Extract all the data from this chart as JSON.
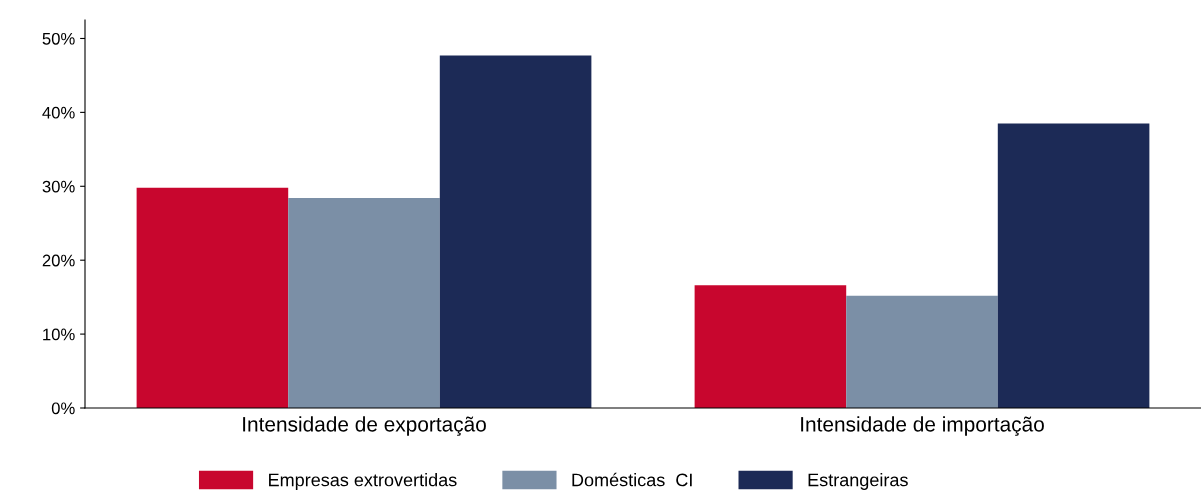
{
  "chart_data": {
    "type": "bar",
    "categories": [
      "Intensidade de exportação",
      "Intensidade de importação"
    ],
    "series": [
      {
        "name": "Empresas extrovertidas",
        "color": "#c8062e",
        "values": [
          29.8,
          16.6
        ]
      },
      {
        "name": "Domésticas  CI",
        "color": "#7b8fa6",
        "values": [
          28.4,
          15.2
        ]
      },
      {
        "name": "Estrangeiras",
        "color": "#1c2a56",
        "values": [
          47.7,
          38.5
        ]
      }
    ],
    "ylim": [
      0,
      52.5
    ],
    "yticks": [
      {
        "value": 0,
        "label": "0%"
      },
      {
        "value": 10,
        "label": "10%"
      },
      {
        "value": 20,
        "label": "20%"
      },
      {
        "value": 30,
        "label": "30%"
      },
      {
        "value": 40,
        "label": "40%"
      },
      {
        "value": 50,
        "label": "50%"
      }
    ],
    "grid": false,
    "legend": "bottom"
  }
}
